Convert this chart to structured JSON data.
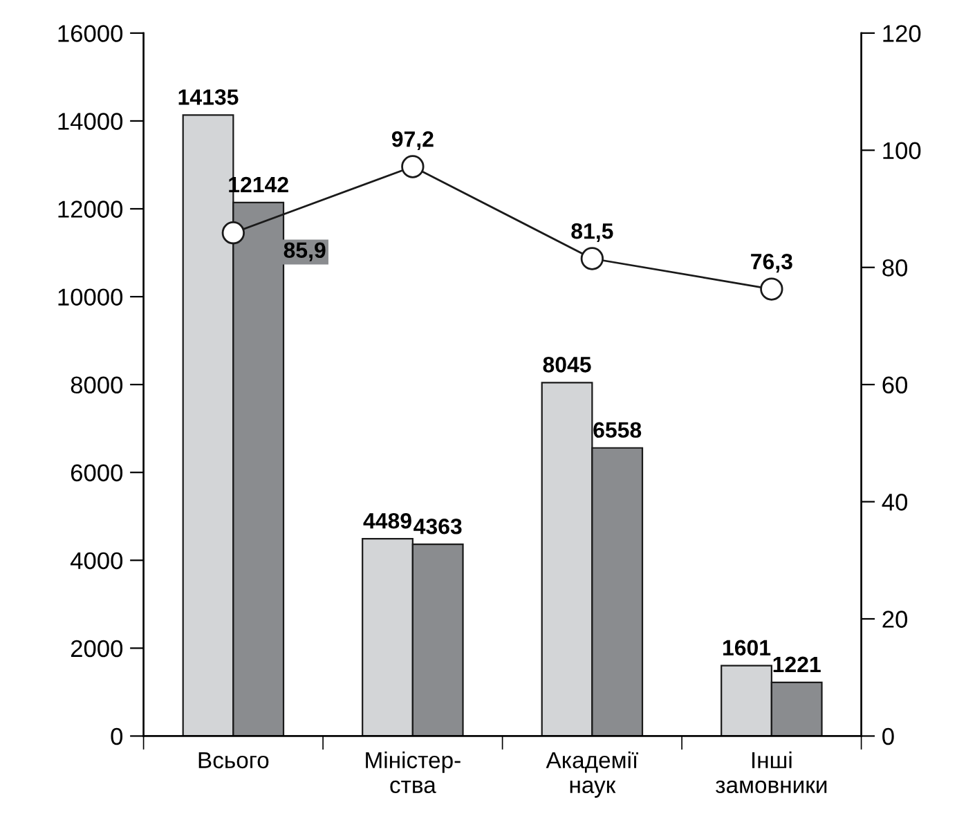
{
  "chart_data": {
    "type": "bar",
    "categories": [
      "Всього",
      "Міністер-\nства",
      "Академії\nнаук",
      "Інші\nзамовники"
    ],
    "series": [
      {
        "color": "#d3d5d7",
        "values": [
          14135,
          4489,
          8045,
          1601
        ]
      },
      {
        "color": "#8a8c8f",
        "values": [
          12142,
          4363,
          6558,
          1221
        ]
      },
      {
        "type": "line",
        "axis": "y2",
        "color": "#1a1a1a",
        "values": [
          85.9,
          97.2,
          81.5,
          76.3
        ],
        "value_labels": [
          "85,9",
          "97,2",
          "81,5",
          "76,3"
        ]
      }
    ],
    "data_labels": true,
    "marker": "circle",
    "ylim": [
      0,
      16000
    ],
    "yticks": [
      0,
      2000,
      4000,
      6000,
      8000,
      10000,
      12000,
      14000,
      16000
    ],
    "y2lim": [
      0,
      120
    ],
    "y2ticks": [
      0,
      20,
      40,
      60,
      80,
      100,
      120
    ],
    "grid": false,
    "legend": false
  }
}
